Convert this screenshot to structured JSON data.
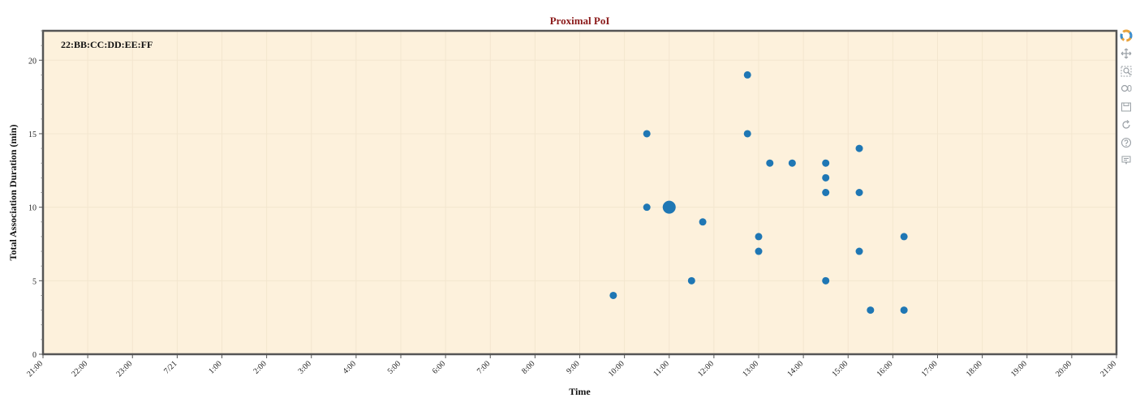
{
  "chart_data": {
    "type": "scatter",
    "title": "Proximal PoI",
    "xlabel": "Time",
    "ylabel": "Total Association Duration (min)",
    "annotation": "22:BB:CC:DD:EE:FF",
    "x_tick_labels": [
      "21:00",
      "22:00",
      "23:00",
      "7/21",
      "1:00",
      "2:00",
      "3:00",
      "4:00",
      "5:00",
      "6:00",
      "7:00",
      "8:00",
      "9:00",
      "10:00",
      "11:00",
      "12:00",
      "13:00",
      "14:00",
      "15:00",
      "16:00",
      "17:00",
      "18:00",
      "19:00",
      "20:00",
      "21:00"
    ],
    "x_unit": "hours since 21:00 on 7/20",
    "xlim": [
      0,
      24
    ],
    "ylim": [
      0,
      22
    ],
    "y_ticks": [
      0,
      5,
      10,
      15,
      20
    ],
    "grid": true,
    "plot_background": "#fdf1dc",
    "point_color": "#1f77b4",
    "points": [
      {
        "x": 12.75,
        "y": 4,
        "size": "small"
      },
      {
        "x": 13.5,
        "y": 15,
        "size": "small"
      },
      {
        "x": 13.5,
        "y": 10,
        "size": "small"
      },
      {
        "x": 14.0,
        "y": 10,
        "size": "large"
      },
      {
        "x": 14.5,
        "y": 5,
        "size": "small"
      },
      {
        "x": 14.75,
        "y": 9,
        "size": "small"
      },
      {
        "x": 15.75,
        "y": 19,
        "size": "small"
      },
      {
        "x": 15.75,
        "y": 15,
        "size": "small"
      },
      {
        "x": 16.0,
        "y": 8,
        "size": "small"
      },
      {
        "x": 16.0,
        "y": 7,
        "size": "small"
      },
      {
        "x": 16.25,
        "y": 13,
        "size": "small"
      },
      {
        "x": 16.75,
        "y": 13,
        "size": "small"
      },
      {
        "x": 17.5,
        "y": 13,
        "size": "small"
      },
      {
        "x": 17.5,
        "y": 12,
        "size": "small"
      },
      {
        "x": 17.5,
        "y": 11,
        "size": "small"
      },
      {
        "x": 17.5,
        "y": 5,
        "size": "small"
      },
      {
        "x": 18.25,
        "y": 14,
        "size": "small"
      },
      {
        "x": 18.25,
        "y": 11,
        "size": "small"
      },
      {
        "x": 18.25,
        "y": 7,
        "size": "small"
      },
      {
        "x": 18.5,
        "y": 3,
        "size": "small"
      },
      {
        "x": 19.25,
        "y": 8,
        "size": "small"
      },
      {
        "x": 19.25,
        "y": 3,
        "size": "small"
      }
    ]
  },
  "toolbar": {
    "logo_icon": "bokeh-logo-icon",
    "tools": [
      {
        "name": "pan-tool",
        "icon": "move-icon",
        "label": "Pan"
      },
      {
        "name": "box-zoom-tool",
        "icon": "box-zoom-icon",
        "label": "Box Zoom"
      },
      {
        "name": "wheel-zoom-tool",
        "icon": "wheel-zoom-icon",
        "label": "Wheel Zoom"
      },
      {
        "name": "save-tool",
        "icon": "save-icon",
        "label": "Save"
      },
      {
        "name": "reset-tool",
        "icon": "reset-icon",
        "label": "Reset"
      },
      {
        "name": "help-tool",
        "icon": "help-icon",
        "label": "Help"
      },
      {
        "name": "hover-tool",
        "icon": "hover-icon",
        "label": "Hover"
      }
    ]
  }
}
